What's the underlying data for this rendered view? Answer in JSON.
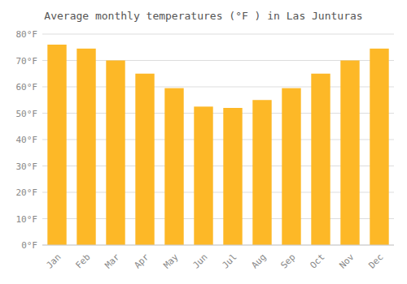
{
  "chart_data": {
    "type": "bar",
    "title": "Average monthly temperatures (°F ) in Las Junturas",
    "categories": [
      "Jan",
      "Feb",
      "Mar",
      "Apr",
      "May",
      "Jun",
      "Jul",
      "Aug",
      "Sep",
      "Oct",
      "Nov",
      "Dec"
    ],
    "values": [
      76,
      74.5,
      70,
      65,
      59.5,
      52.5,
      52,
      55,
      59.5,
      65,
      70,
      74.5
    ],
    "color": "#FDB827",
    "ylim": [
      0,
      80
    ],
    "yticks": [
      {
        "value": 0,
        "label": "0°F"
      },
      {
        "value": 10,
        "label": "10°F"
      },
      {
        "value": 20,
        "label": "20°F"
      },
      {
        "value": 30,
        "label": "30°F"
      },
      {
        "value": 40,
        "label": "40°F"
      },
      {
        "value": 50,
        "label": "50°F"
      },
      {
        "value": 60,
        "label": "60°F"
      },
      {
        "value": 70,
        "label": "70°F"
      },
      {
        "value": 80,
        "label": "80°F"
      }
    ],
    "grid": true
  }
}
